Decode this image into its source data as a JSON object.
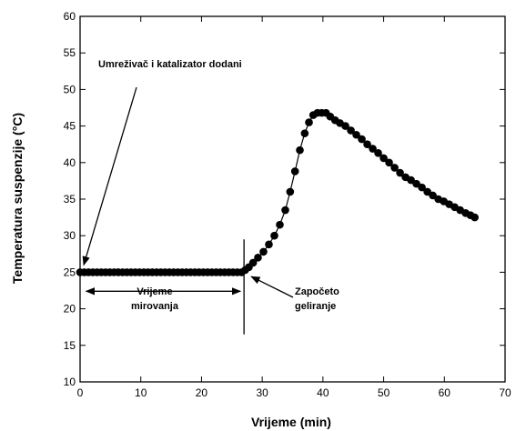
{
  "chart_data": {
    "type": "scatter",
    "xlabel": "Vrijeme (min)",
    "ylabel": "Temperatura suspenzije (°C)",
    "xlim": [
      0,
      70
    ],
    "ylim": [
      10,
      60
    ],
    "xticks": [
      0,
      10,
      20,
      30,
      40,
      50,
      60,
      70
    ],
    "yticks": [
      10,
      15,
      20,
      25,
      30,
      35,
      40,
      45,
      50,
      55,
      60
    ],
    "grid": false,
    "marker_color": "#000000",
    "x": [
      0,
      0.7,
      1.4,
      2.1,
      2.8,
      3.5,
      4.2,
      4.9,
      5.6,
      6.3,
      7,
      7.7,
      8.4,
      9.1,
      9.8,
      10.5,
      11.2,
      11.9,
      12.6,
      13.3,
      14,
      14.7,
      15.4,
      16.1,
      16.8,
      17.5,
      18.2,
      18.9,
      19.6,
      20.3,
      21,
      21.7,
      22.4,
      23.1,
      23.8,
      24.5,
      25.2,
      25.9,
      26.6,
      27.2,
      27.8,
      28.5,
      29.3,
      30.2,
      31.1,
      32,
      32.9,
      33.8,
      34.6,
      35.4,
      36.2,
      37,
      37.7,
      38.4,
      39.1,
      39.8,
      40.5,
      41.2,
      42,
      42.8,
      43.7,
      44.6,
      45.5,
      46.4,
      47.3,
      48.2,
      49.1,
      50,
      50.9,
      51.8,
      52.7,
      53.6,
      54.5,
      55.4,
      56.3,
      57.2,
      58.1,
      59,
      59.9,
      60.8,
      61.7,
      62.6,
      63.5,
      64.3,
      65
    ],
    "y": [
      25,
      25,
      25,
      25,
      25,
      25,
      25,
      25,
      25,
      25,
      25,
      25,
      25,
      25,
      25,
      25,
      25,
      25,
      25,
      25,
      25,
      25,
      25,
      25,
      25,
      25,
      25,
      25,
      25,
      25,
      25,
      25,
      25,
      25,
      25,
      25,
      25,
      25,
      25,
      25.3,
      25.7,
      26.3,
      27,
      27.8,
      28.8,
      30,
      31.5,
      33.5,
      36,
      38.8,
      41.7,
      44,
      45.5,
      46.5,
      46.8,
      46.8,
      46.8,
      46.3,
      45.8,
      45.4,
      45,
      44.4,
      43.8,
      43.2,
      42.5,
      41.9,
      41.3,
      40.6,
      40,
      39.3,
      38.6,
      38,
      37.6,
      37.1,
      36.6,
      36,
      35.5,
      35,
      34.7,
      34.3,
      33.9,
      33.5,
      33.1,
      32.8,
      32.5
    ],
    "annotations": {
      "crosslinker": "Umreživač i katalizator dodani",
      "rest_line1": "Vrijeme",
      "rest_line2": "mirovanja",
      "gel_line1": "Započeto",
      "gel_line2": "geliranje"
    },
    "gel_time_marker": 27
  }
}
